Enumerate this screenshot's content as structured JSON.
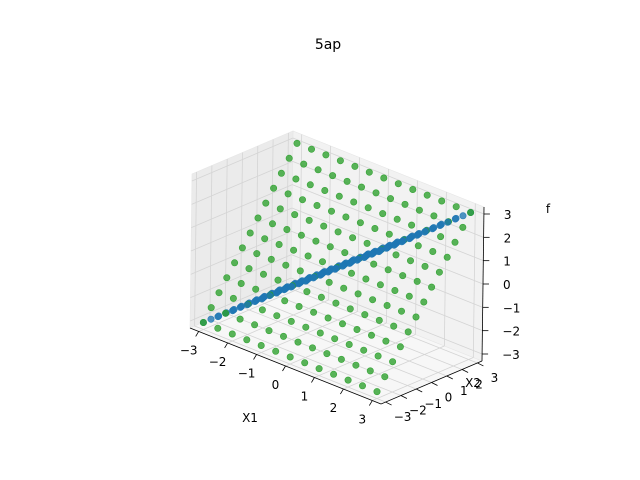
{
  "chart_data": {
    "type": "scatter",
    "projection": "3d",
    "title": "5ap",
    "xlabel": "X1",
    "ylabel": "X2",
    "zlabel": "f",
    "xlim": [
      -3.3,
      3.3
    ],
    "ylim": [
      -3.3,
      3.3
    ],
    "zlim": [
      -3.3,
      3.3
    ],
    "xticks": [
      -3,
      -2,
      -1,
      0,
      1,
      2,
      3
    ],
    "yticks": [
      -3,
      -2,
      -1,
      0,
      1,
      2,
      3
    ],
    "zticks": [
      -3,
      -2,
      -1,
      0,
      1,
      2,
      3
    ],
    "xtick_labels": [
      "−3",
      "−2",
      "−1",
      "0",
      "1",
      "2",
      "3"
    ],
    "ytick_labels": [
      "−3",
      "−2",
      "−1",
      "0",
      "1",
      "2",
      "3"
    ],
    "ztick_labels": [
      "−3",
      "−2",
      "−1",
      "0",
      "1",
      "2",
      "3"
    ],
    "grid": true,
    "legend": "none",
    "view": {
      "elev": 30,
      "azim": -60
    },
    "series": [
      {
        "color": "#2ca02c",
        "grid_x": [
          -3.0,
          -2.5,
          -2.0,
          -1.5,
          -1.0,
          -0.5,
          0.0,
          0.5,
          1.0,
          1.5,
          2.0,
          2.5,
          3.0
        ],
        "grid_y": [
          -3.0,
          -2.5,
          -2.0,
          -1.5,
          -1.0,
          -0.5,
          0.0,
          0.5,
          1.0,
          1.5,
          2.0,
          2.5,
          3.0
        ],
        "z_rows": [
          [
            -3.0,
            -3.0,
            -3.0,
            -3.0,
            -3.0,
            -3.0,
            -3.0,
            -3.0,
            -3.0,
            -3.0,
            -3.0,
            -3.0,
            -3.0
          ],
          [
            -2.5,
            -2.5,
            -2.5,
            -2.5,
            -2.5,
            -2.5,
            -2.5,
            -2.5,
            -2.5,
            -2.5,
            -2.5,
            -2.5,
            -2.5
          ],
          [
            -2.0,
            -2.0,
            -2.0,
            -2.0,
            -2.0,
            -2.0,
            -2.0,
            -2.0,
            -2.0,
            -2.0,
            -2.0,
            -2.0,
            -2.0
          ],
          [
            -1.5,
            -1.5,
            -1.5,
            -1.5,
            -1.5,
            -1.5,
            -1.5,
            -1.5,
            -1.5,
            -1.5,
            -1.5,
            -1.5,
            -1.5
          ],
          [
            -1.0,
            -1.0,
            -1.0,
            -1.0,
            -1.0,
            -1.0,
            -1.0,
            -1.0,
            -1.0,
            -1.0,
            -1.0,
            -1.0,
            -1.0
          ],
          [
            -0.5,
            -0.5,
            -0.5,
            -0.5,
            -0.5,
            -0.5,
            -0.5,
            -0.5,
            -0.5,
            -0.5,
            -0.5,
            -0.5,
            -0.5
          ],
          [
            0.0,
            0.0,
            0.0,
            0.0,
            0.0,
            0.0,
            0.0,
            0.0,
            0.0,
            0.0,
            0.0,
            0.0,
            0.0
          ],
          [
            0.5,
            0.5,
            0.5,
            0.5,
            0.5,
            0.5,
            0.5,
            0.5,
            0.5,
            0.5,
            0.5,
            0.5,
            0.5
          ],
          [
            1.0,
            1.0,
            1.0,
            1.0,
            1.0,
            1.0,
            1.0,
            1.0,
            1.0,
            1.0,
            1.0,
            1.0,
            1.0
          ],
          [
            1.5,
            1.5,
            1.5,
            1.5,
            1.5,
            1.5,
            1.5,
            1.5,
            1.5,
            1.5,
            1.5,
            1.5,
            1.5
          ],
          [
            2.0,
            2.0,
            2.0,
            2.0,
            2.0,
            2.0,
            2.0,
            2.0,
            2.0,
            2.0,
            2.0,
            2.0,
            2.0
          ],
          [
            2.5,
            2.5,
            2.5,
            2.5,
            2.5,
            2.5,
            2.5,
            2.5,
            2.5,
            2.5,
            2.5,
            2.5,
            2.5
          ],
          [
            3.0,
            3.0,
            3.0,
            3.0,
            3.0,
            3.0,
            3.0,
            3.0,
            3.0,
            3.0,
            3.0,
            3.0,
            3.0
          ]
        ]
      },
      {
        "color": "#1f77b4",
        "grid_x": [
          -3.0,
          -2.5,
          -2.0,
          -1.5,
          -1.0,
          -0.5,
          0.0,
          0.5,
          1.0,
          1.5,
          2.0,
          2.5,
          3.0
        ],
        "grid_y": [
          -3.0,
          -2.5,
          -2.0,
          -1.5,
          -1.0,
          -0.5,
          0.0,
          0.5,
          1.0,
          1.5,
          2.0,
          2.5,
          3.0
        ],
        "z_rows": [
          [
            -3.0,
            -2.5,
            -2.0,
            -1.5,
            -1.0,
            -0.5,
            0.0,
            0.5,
            1.0,
            1.5,
            2.0,
            2.5,
            3.0
          ],
          [
            -3.0,
            -2.5,
            -2.0,
            -1.5,
            -1.0,
            -0.5,
            0.0,
            0.5,
            1.0,
            1.5,
            2.0,
            2.5,
            3.0
          ],
          [
            -3.0,
            -2.5,
            -2.0,
            -1.5,
            -1.0,
            -0.5,
            0.0,
            0.5,
            1.0,
            1.5,
            2.0,
            2.5,
            3.0
          ],
          [
            -3.0,
            -2.5,
            -2.0,
            -1.5,
            -1.0,
            -0.5,
            0.0,
            0.5,
            1.0,
            1.5,
            2.0,
            2.5,
            3.0
          ],
          [
            -3.0,
            -2.5,
            -2.0,
            -1.5,
            -1.0,
            -0.5,
            0.0,
            0.5,
            1.0,
            1.5,
            2.0,
            2.5,
            3.0
          ],
          [
            -3.0,
            -2.5,
            -2.0,
            -1.5,
            -1.0,
            -0.5,
            0.0,
            0.5,
            1.0,
            1.5,
            2.0,
            2.5,
            3.0
          ],
          [
            -3.0,
            -2.5,
            -2.0,
            -1.5,
            -1.0,
            -0.5,
            0.0,
            0.5,
            1.0,
            1.5,
            2.0,
            2.5,
            3.0
          ],
          [
            -3.0,
            -2.5,
            -2.0,
            -1.5,
            -1.0,
            -0.5,
            0.0,
            0.5,
            1.0,
            1.5,
            2.0,
            2.5,
            3.0
          ],
          [
            -3.0,
            -2.5,
            -2.0,
            -1.5,
            -1.0,
            -0.5,
            0.0,
            0.5,
            1.0,
            1.5,
            2.0,
            2.5,
            3.0
          ],
          [
            -3.0,
            -2.5,
            -2.0,
            -1.5,
            -1.0,
            -0.5,
            0.0,
            0.5,
            1.0,
            1.5,
            2.0,
            2.5,
            3.0
          ],
          [
            -3.0,
            -2.5,
            -2.0,
            -1.5,
            -1.0,
            -0.5,
            0.0,
            0.5,
            1.0,
            1.5,
            2.0,
            2.5,
            3.0
          ],
          [
            -3.0,
            -2.5,
            -2.0,
            -1.5,
            -1.0,
            -0.5,
            0.0,
            0.5,
            1.0,
            1.5,
            2.0,
            2.5,
            3.0
          ],
          [
            -3.0,
            -2.5,
            -2.0,
            -1.5,
            -1.0,
            -0.5,
            0.0,
            0.5,
            1.0,
            1.5,
            2.0,
            2.5,
            3.0
          ]
        ]
      }
    ]
  }
}
